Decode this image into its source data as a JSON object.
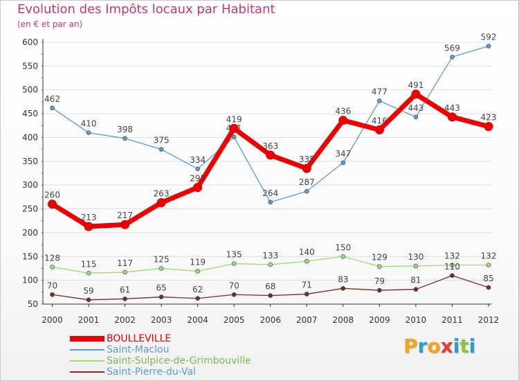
{
  "chart_data": {
    "type": "line",
    "title": "Evolution des Impôts locaux par Habitant",
    "subtitle": "(en € et par an)",
    "xlabel": "",
    "ylabel": "",
    "x": [
      "2000",
      "2001",
      "2002",
      "2003",
      "2004",
      "2005",
      "2006",
      "2007",
      "2008",
      "2009",
      "2010",
      "2011",
      "2012"
    ],
    "ylim": [
      50,
      600
    ],
    "yticks": [
      "600",
      "550",
      "500",
      "450",
      "400",
      "350",
      "300",
      "250",
      "200",
      "150",
      "100",
      "50"
    ],
    "grid": "horizontal",
    "legend": "bottom-left",
    "series": [
      {
        "name": "Saint-Maclou",
        "color": "#5b9bd5",
        "values": [
          462,
          410,
          398,
          375,
          334,
          401,
          264,
          287,
          347,
          477,
          443,
          569,
          592
        ]
      },
      {
        "name": "Saint-Sulpice-de-Grimbouville",
        "color": "#99dd77",
        "values": [
          128,
          115,
          117,
          125,
          119,
          135,
          133,
          140,
          150,
          129,
          130,
          132,
          132
        ]
      },
      {
        "name": "Saint-Pierre-du-Val",
        "color": "#7a2a2a",
        "values": [
          70,
          59,
          61,
          65,
          62,
          70,
          68,
          71,
          83,
          79,
          81,
          110,
          85
        ]
      },
      {
        "name": "BOULLEVILLE",
        "color": "#ee0000",
        "values": [
          260,
          213,
          217,
          263,
          295,
          419,
          363,
          335,
          436,
          416,
          491,
          443,
          423
        ]
      }
    ]
  },
  "legend": {
    "items": [
      {
        "label": "BOULLEVILLE",
        "color": "#ee0000"
      },
      {
        "label": "Saint-Maclou",
        "color": "#5b9bd5"
      },
      {
        "label": "Saint-Sulpice-de-Grimbouville",
        "color": "#99dd77"
      },
      {
        "label": "Saint-Pierre-du-Val",
        "color": "#7a2a2a"
      }
    ]
  },
  "brand": {
    "name": "Proxiti",
    "letters": [
      "P",
      "r",
      "o",
      "x",
      "i",
      "t",
      "i"
    ],
    "letter_colors": [
      "#f7a21b",
      "#2d9bd2",
      "#f7a21b",
      "#e03c31",
      "#2d9bd2",
      "#8dc63f",
      "#2d9bd2"
    ]
  }
}
